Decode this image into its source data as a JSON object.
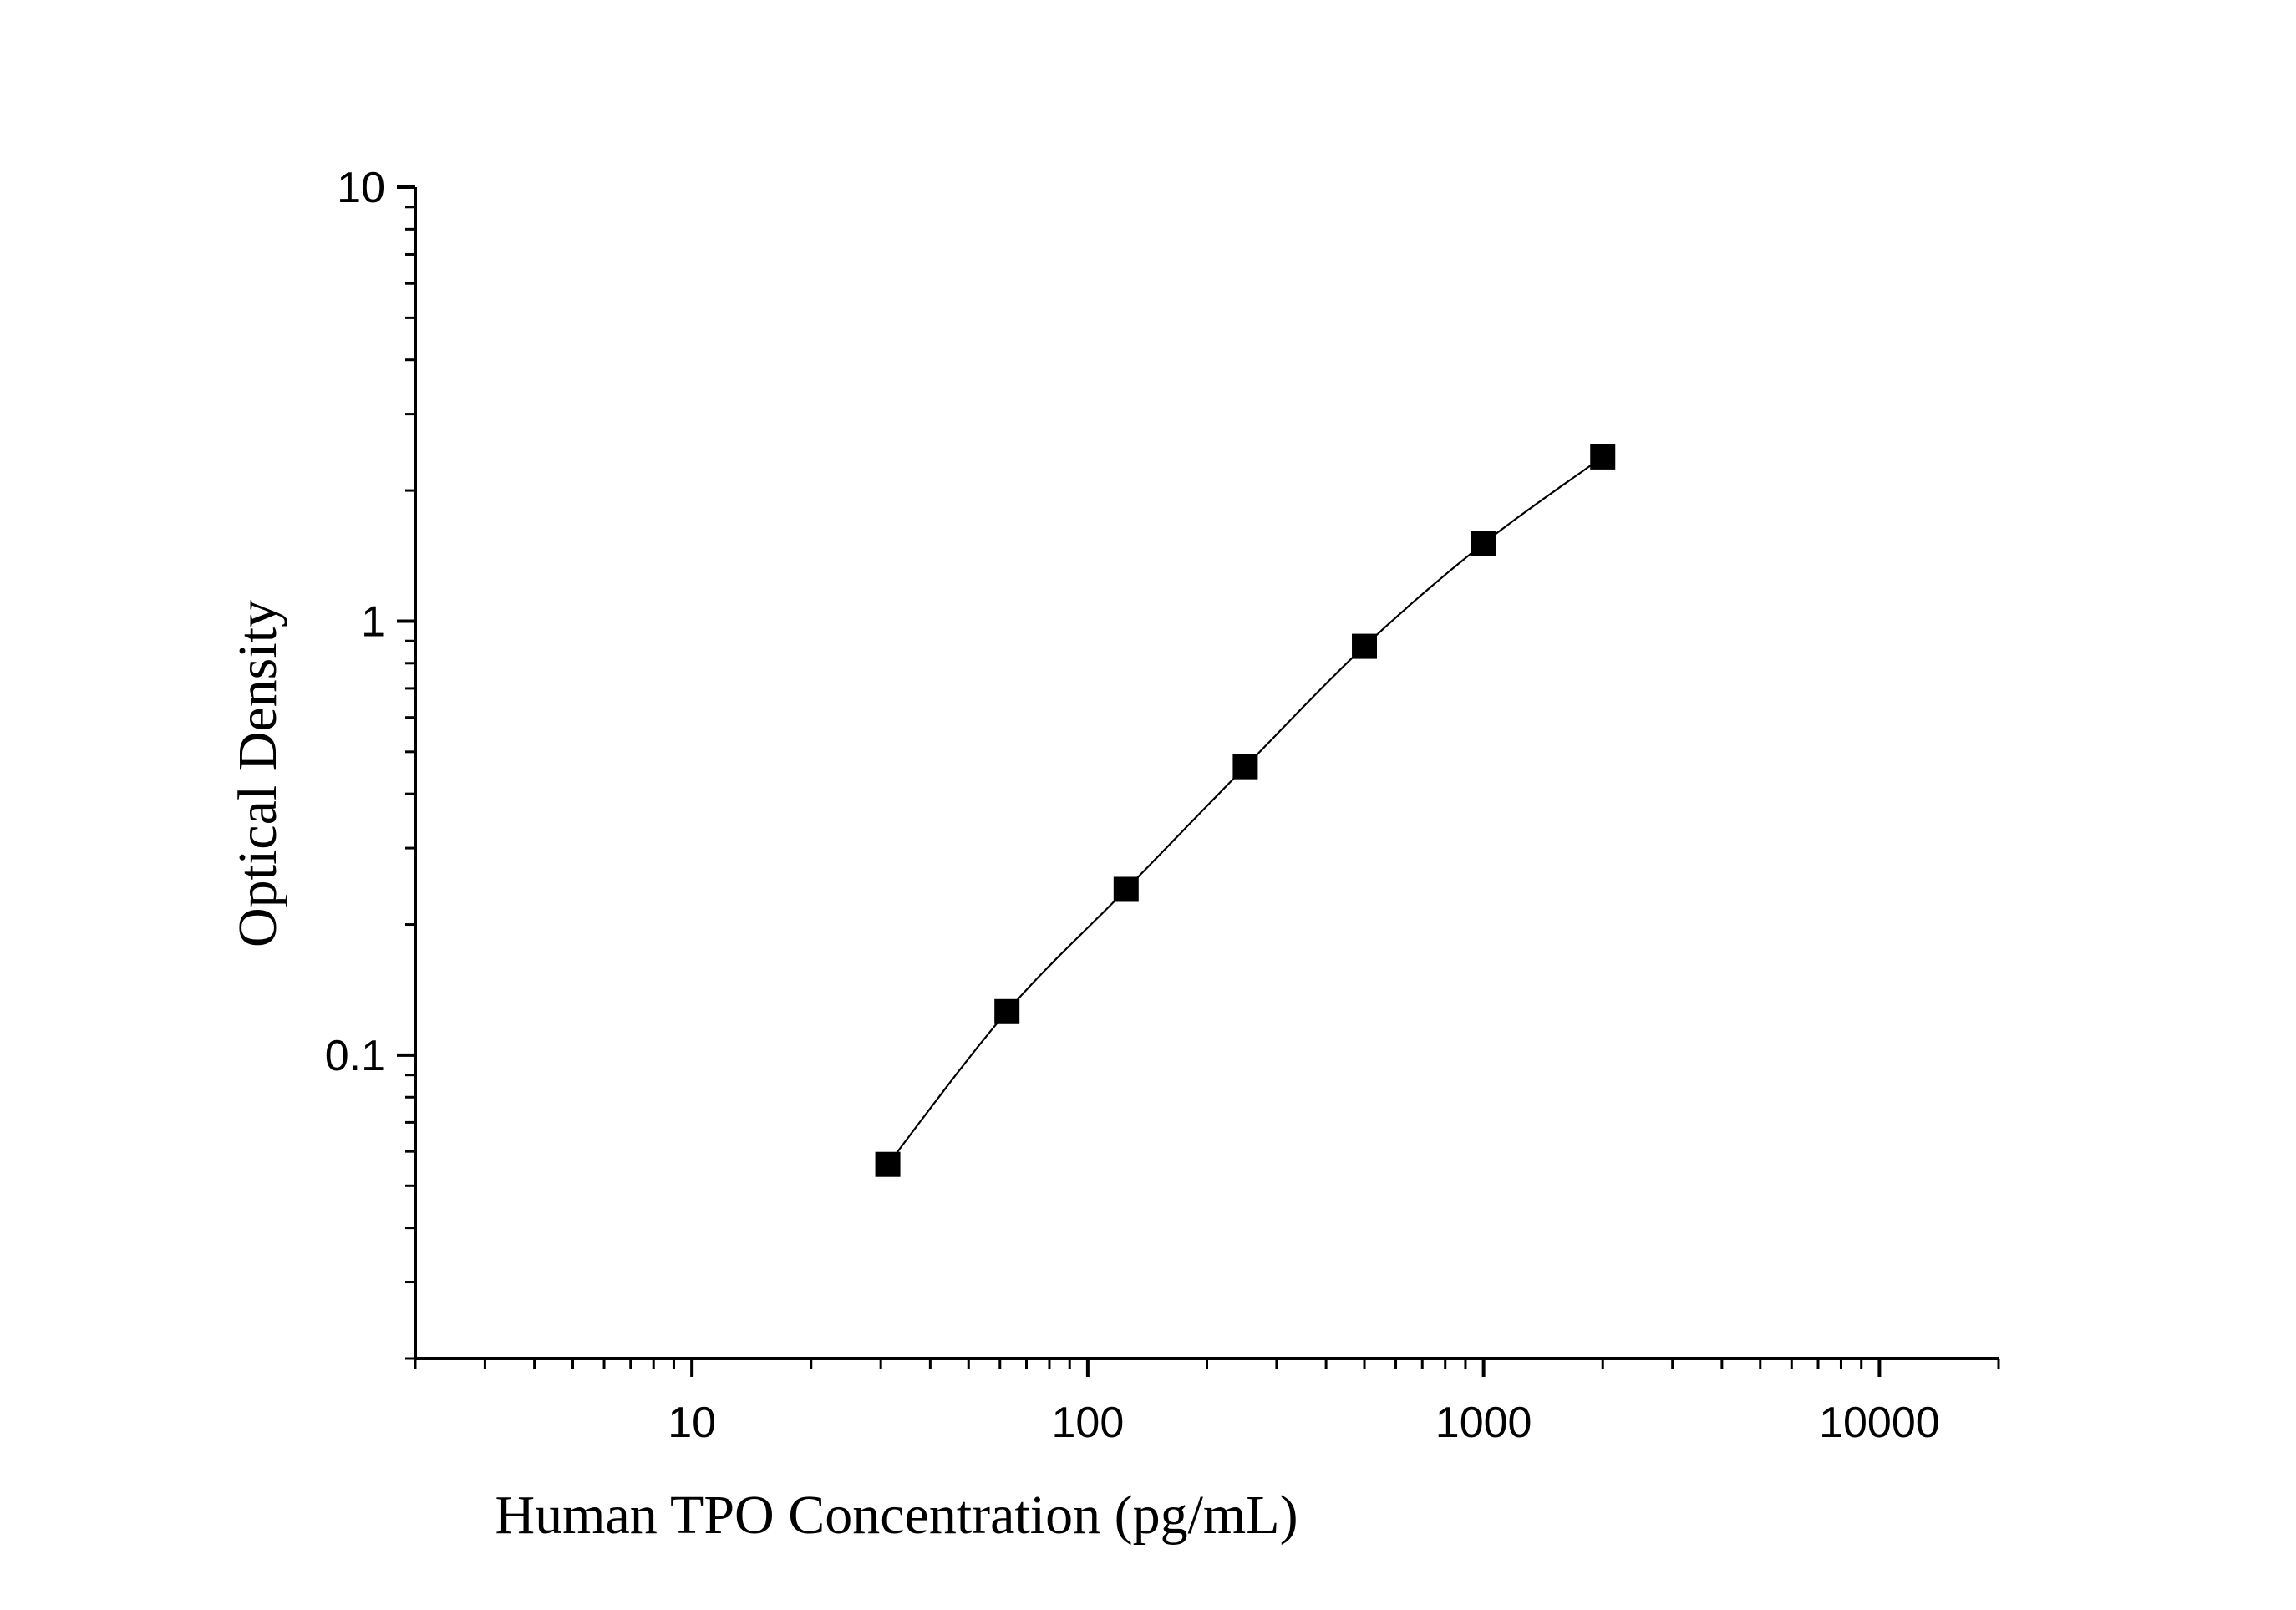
{
  "chart_data": {
    "type": "scatter",
    "title": "",
    "xlabel": "Human TPO Concentration (pg/mL)",
    "ylabel": "Optical Density",
    "x_scale": "log",
    "y_scale": "log",
    "xlim": [
      2,
      20000
    ],
    "ylim": [
      0.02,
      10
    ],
    "x_ticks": [
      {
        "value": 10,
        "label": "10"
      },
      {
        "value": 100,
        "label": "100"
      },
      {
        "value": 1000,
        "label": "1000"
      },
      {
        "value": 10000,
        "label": "10000"
      }
    ],
    "y_ticks": [
      {
        "value": 0.1,
        "label": "0.1"
      },
      {
        "value": 1,
        "label": "1"
      },
      {
        "value": 10,
        "label": "10"
      }
    ],
    "grid": false,
    "legend": "none",
    "series": [
      {
        "marker": "square",
        "fit_line": true,
        "color": "#000000",
        "x": [
          31.25,
          62.5,
          125,
          250,
          500,
          1000,
          2000
        ],
        "y": [
          0.056,
          0.126,
          0.241,
          0.462,
          0.875,
          1.51,
          2.39
        ]
      }
    ]
  }
}
